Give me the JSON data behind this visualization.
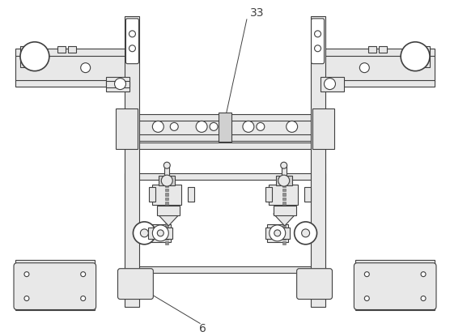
{
  "bg_color": "#ffffff",
  "lc": "#404040",
  "fc_light": "#e8e8e8",
  "fc_mid": "#d0d0d0",
  "fc_white": "#ffffff",
  "lw": 0.8,
  "lw2": 1.2
}
